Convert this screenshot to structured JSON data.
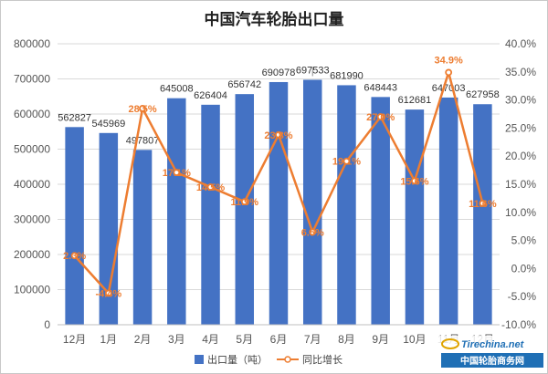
{
  "chart_data": {
    "type": "bar",
    "title": "中国汽车轮胎出口量",
    "categories": [
      "12月",
      "1月",
      "2月",
      "3月",
      "4月",
      "5月",
      "6月",
      "7月",
      "8月",
      "9月",
      "10月",
      "11月",
      "12月"
    ],
    "series": [
      {
        "name": "出口量（吨）",
        "type": "bar",
        "axis": "left",
        "values": [
          562827,
          545969,
          497807,
          645008,
          626404,
          656742,
          690978,
          697533,
          681990,
          648443,
          612681,
          647003,
          627958
        ],
        "labels": [
          "562827",
          "545969",
          "497807",
          "645008",
          "626404",
          "656742",
          "690978",
          "697533",
          "681990",
          "648443",
          "612681",
          "647003",
          "627958"
        ]
      },
      {
        "name": "同比增长",
        "type": "line",
        "axis": "right",
        "values": [
          2.3,
          -4.4,
          28.5,
          17.1,
          14.5,
          11.9,
          23.8,
          6.5,
          19.1,
          27.0,
          15.6,
          34.9,
          11.6
        ],
        "labels": [
          "2.3%",
          "-4.4%",
          "28.5%",
          "17.1%",
          "14.5%",
          "11.9%",
          "23.8%",
          "6.5%",
          "19.1%",
          "27.0%",
          "15.6%",
          "34.9%",
          "11.6%"
        ]
      }
    ],
    "y_left": {
      "ylim": [
        0,
        800000
      ],
      "ticks": [
        "0",
        "100000",
        "200000",
        "300000",
        "400000",
        "500000",
        "600000",
        "700000",
        "800000"
      ]
    },
    "y_right": {
      "ylim": [
        -10,
        40
      ],
      "ticks": [
        "-10.0%",
        "-5.0%",
        "0.0%",
        "5.0%",
        "10.0%",
        "15.0%",
        "20.0%",
        "25.0%",
        "30.0%",
        "35.0%",
        "40.0%"
      ]
    },
    "grid": true,
    "legend_position": "bottom",
    "colors": {
      "bar": "#4472c4",
      "line": "#ed7d31",
      "line_label": "#ed7d31",
      "grid": "#d9d9d9"
    }
  },
  "watermark": {
    "site": "Tirechina.net",
    "name": "中国轮胎商务网",
    "color": "#1f6fb5"
  }
}
